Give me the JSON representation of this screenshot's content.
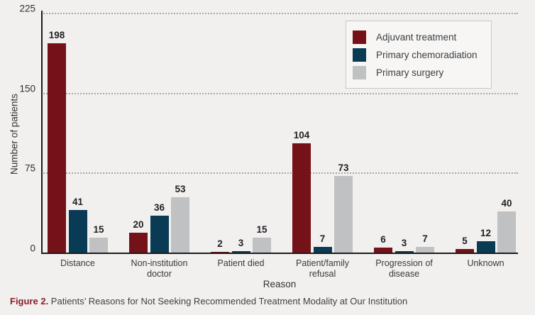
{
  "chart_data": {
    "type": "bar",
    "categories": [
      "Distance",
      "Non-institution doctor",
      "Patient died",
      "Patient/family refusal",
      "Progression of disease",
      "Unknown"
    ],
    "series": [
      {
        "name": "Adjuvant treatment",
        "color": "#751119",
        "values": [
          198,
          20,
          2,
          104,
          6,
          5
        ]
      },
      {
        "name": "Primary chemoradiation",
        "color": "#0a3b54",
        "values": [
          41,
          36,
          3,
          7,
          3,
          12
        ]
      },
      {
        "name": "Primary surgery",
        "color": "#bfc1c3",
        "values": [
          15,
          53,
          15,
          73,
          7,
          40
        ]
      }
    ],
    "xlabel": "Reason",
    "ylabel": "Number of patients",
    "ylim": [
      0,
      225
    ],
    "yticks": [
      0,
      75,
      150,
      225
    ],
    "grid": "horizontal dotted at 75, 150, 225",
    "legend_position": "top-right"
  },
  "caption": {
    "prefix": "Figure 2.",
    "text": " Patients’ Reasons for Not Seeking Recommended Treatment Modality at Our Institution"
  }
}
